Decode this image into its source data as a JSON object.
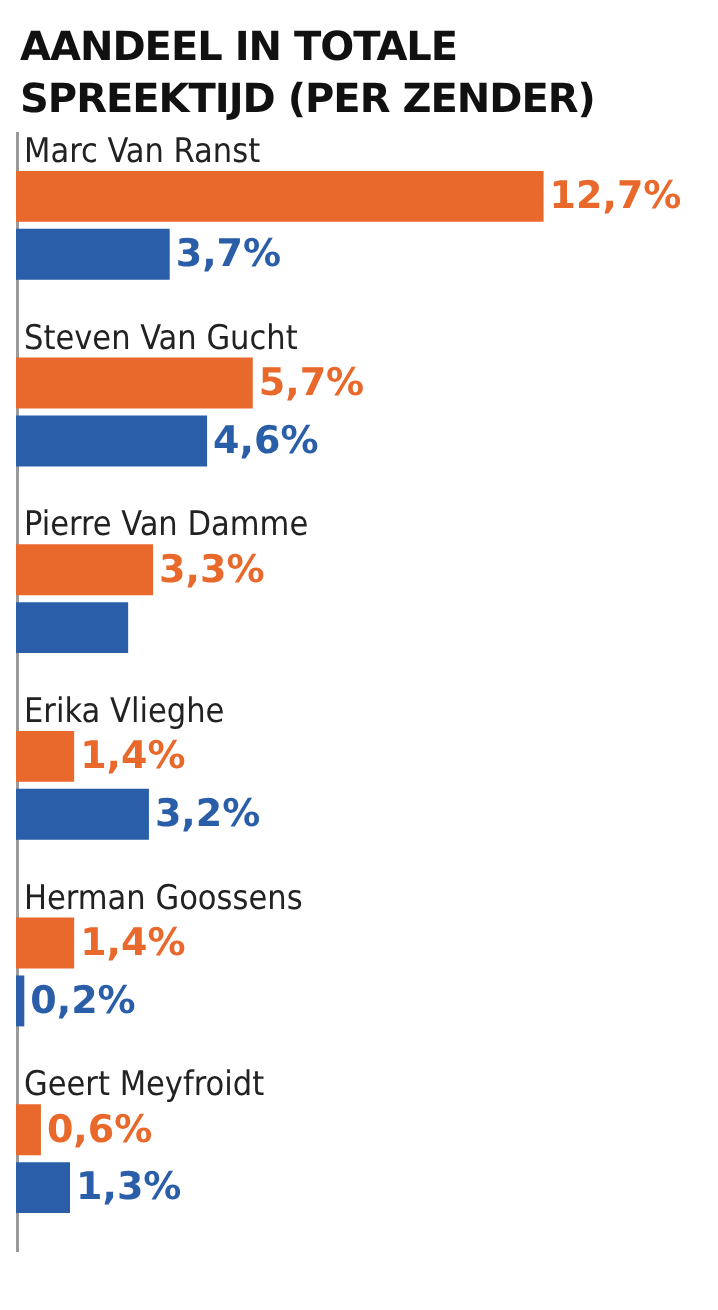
{
  "chart_data": {
    "type": "bar",
    "orientation": "horizontal",
    "title": "AANDEEL IN TOTALE SPREEKTIJD (PER ZENDER)",
    "categories": [
      "Marc Van Ranst",
      "Steven Van Gucht",
      "Pierre Van Damme",
      "Erika Vlieghe",
      "Herman Goossens",
      "Geert Meyfroidt"
    ],
    "series": [
      {
        "color": "#e8692b",
        "values": [
          12.7,
          5.7,
          3.3,
          1.4,
          1.4,
          0.6
        ],
        "value_labels": [
          "12,7%",
          "5,7%",
          "3,3%",
          "1,4%",
          "1,4%",
          "0,6%"
        ]
      },
      {
        "color": "#2a5ea8",
        "values": [
          3.7,
          4.6,
          2.7,
          3.2,
          0.2,
          1.3
        ],
        "value_labels": [
          "3,7%",
          "4,6%",
          null,
          "3,2%",
          "0,2%",
          "1,3%"
        ]
      }
    ],
    "legend": false,
    "grid": false
  }
}
